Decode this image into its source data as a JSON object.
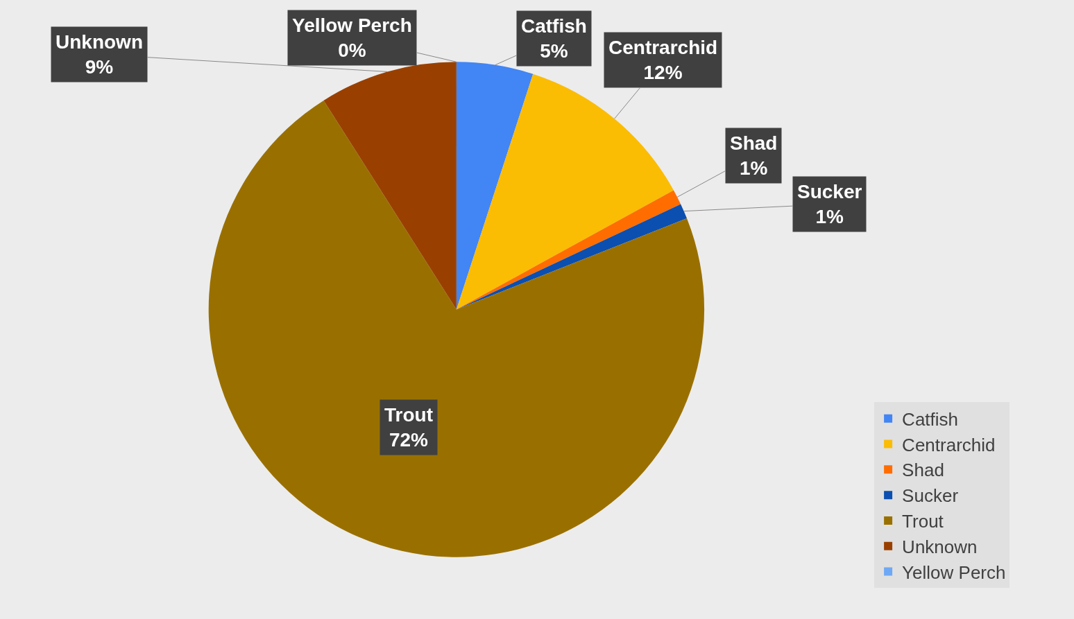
{
  "chart_data": {
    "type": "pie",
    "categories": [
      "Catfish",
      "Centrarchid",
      "Shad",
      "Sucker",
      "Trout",
      "Unknown",
      "Yellow Perch"
    ],
    "values": [
      5,
      12,
      1,
      1,
      72,
      9,
      0
    ],
    "value_labels": [
      "5%",
      "12%",
      "1%",
      "1%",
      "72%",
      "9%",
      "0%"
    ],
    "colors": [
      "#4285f4",
      "#fbbc04",
      "#ff6d01",
      "#0b4fb0",
      "#997000",
      "#994000",
      "#6fa8f5"
    ],
    "legend": "bottom right"
  }
}
